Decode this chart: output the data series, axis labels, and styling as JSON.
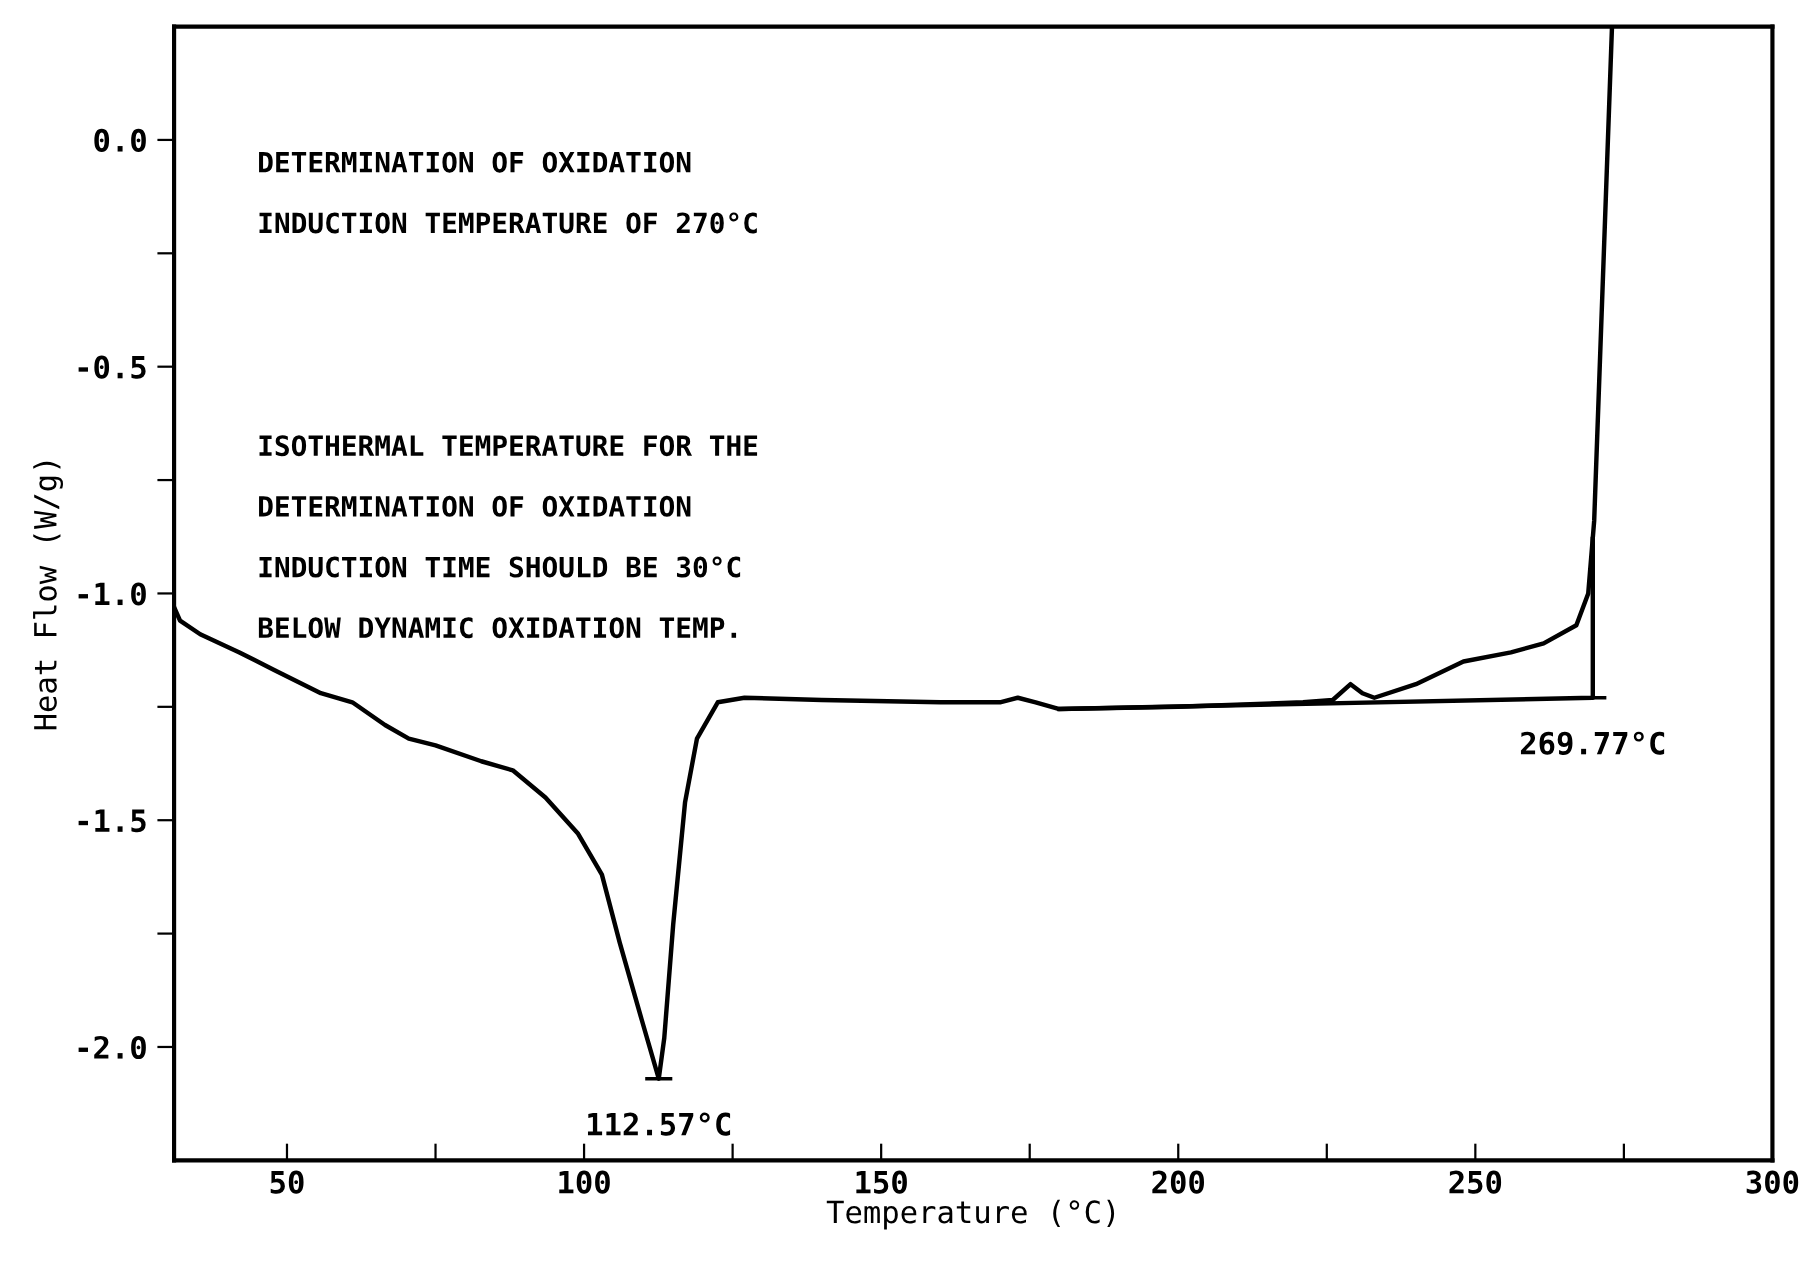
{
  "chart_data": {
    "type": "line",
    "xlabel": "Temperature (°C)",
    "ylabel": "Heat Flow (W/g)",
    "xlim": [
      31,
      300
    ],
    "ylim": [
      -2.25,
      0.25
    ],
    "xticks": [
      50,
      {
        "value": 75,
        "label": null
      },
      100,
      {
        "value": 125,
        "label": null
      },
      150,
      {
        "value": 175,
        "label": null
      },
      200,
      {
        "value": 225,
        "label": null
      },
      250,
      {
        "value": 275,
        "label": null
      },
      300
    ],
    "yticks": [
      {
        "value": -2,
        "label": "-2.0"
      },
      {
        "value": -1.75,
        "label": null
      },
      -1.5,
      {
        "value": -1.25,
        "label": null
      },
      {
        "value": -1,
        "label": "-1.0"
      },
      {
        "value": -0.75,
        "label": null
      },
      -0.5,
      {
        "value": -0.25,
        "label": null
      },
      {
        "value": 0,
        "label": "0.0"
      }
    ],
    "grid": false,
    "legend": false,
    "marker": "none",
    "line_style": "solid",
    "series": [
      {
        "color": "#000000",
        "x": [
          31,
          32,
          35.4,
          42,
          48,
          55.7,
          61,
          66.5,
          70.5,
          75,
          82.7,
          88,
          93.5,
          99,
          103,
          106,
          109.7,
          112.57,
          113.5,
          115,
          117,
          119,
          122.5,
          127,
          140,
          160,
          170,
          173,
          176,
          180,
          200,
          221,
          226,
          229,
          231,
          233,
          240,
          248,
          256,
          261.5,
          267,
          269,
          270,
          273
        ],
        "values": [
          -1.03,
          -1.06,
          -1.09,
          -1.13,
          -1.17,
          -1.22,
          -1.24,
          -1.29,
          -1.32,
          -1.335,
          -1.37,
          -1.39,
          -1.45,
          -1.53,
          -1.62,
          -1.77,
          -1.94,
          -2.07,
          -1.98,
          -1.73,
          -1.46,
          -1.32,
          -1.24,
          -1.23,
          -1.235,
          -1.24,
          -1.24,
          -1.23,
          -1.24,
          -1.255,
          -1.25,
          -1.24,
          -1.235,
          -1.2,
          -1.22,
          -1.23,
          -1.2,
          -1.15,
          -1.13,
          -1.11,
          -1.07,
          -1.0,
          -0.84,
          0.25
        ]
      },
      {
        "color": "#000000",
        "x": [
          180,
          269.77,
          269.77
        ],
        "values": [
          -1.255,
          -1.23,
          -0.88
        ]
      }
    ],
    "annotations": [
      "DETERMINATION OF OXIDATION\nINDUCTION TEMPERATURE OF 270°C",
      "ISOTHERMAL TEMPERATURE FOR THE\nDETERMINATION OF OXIDATION\nINDUCTION TIME SHOULD BE 30°C\nBELOW DYNAMIC OXIDATION TEMP.",
      {
        "text": "112.57°C",
        "x": 112.57,
        "y": -2.07
      },
      {
        "text": "269.77°C",
        "x": 269.77,
        "y": -1.23
      }
    ]
  }
}
